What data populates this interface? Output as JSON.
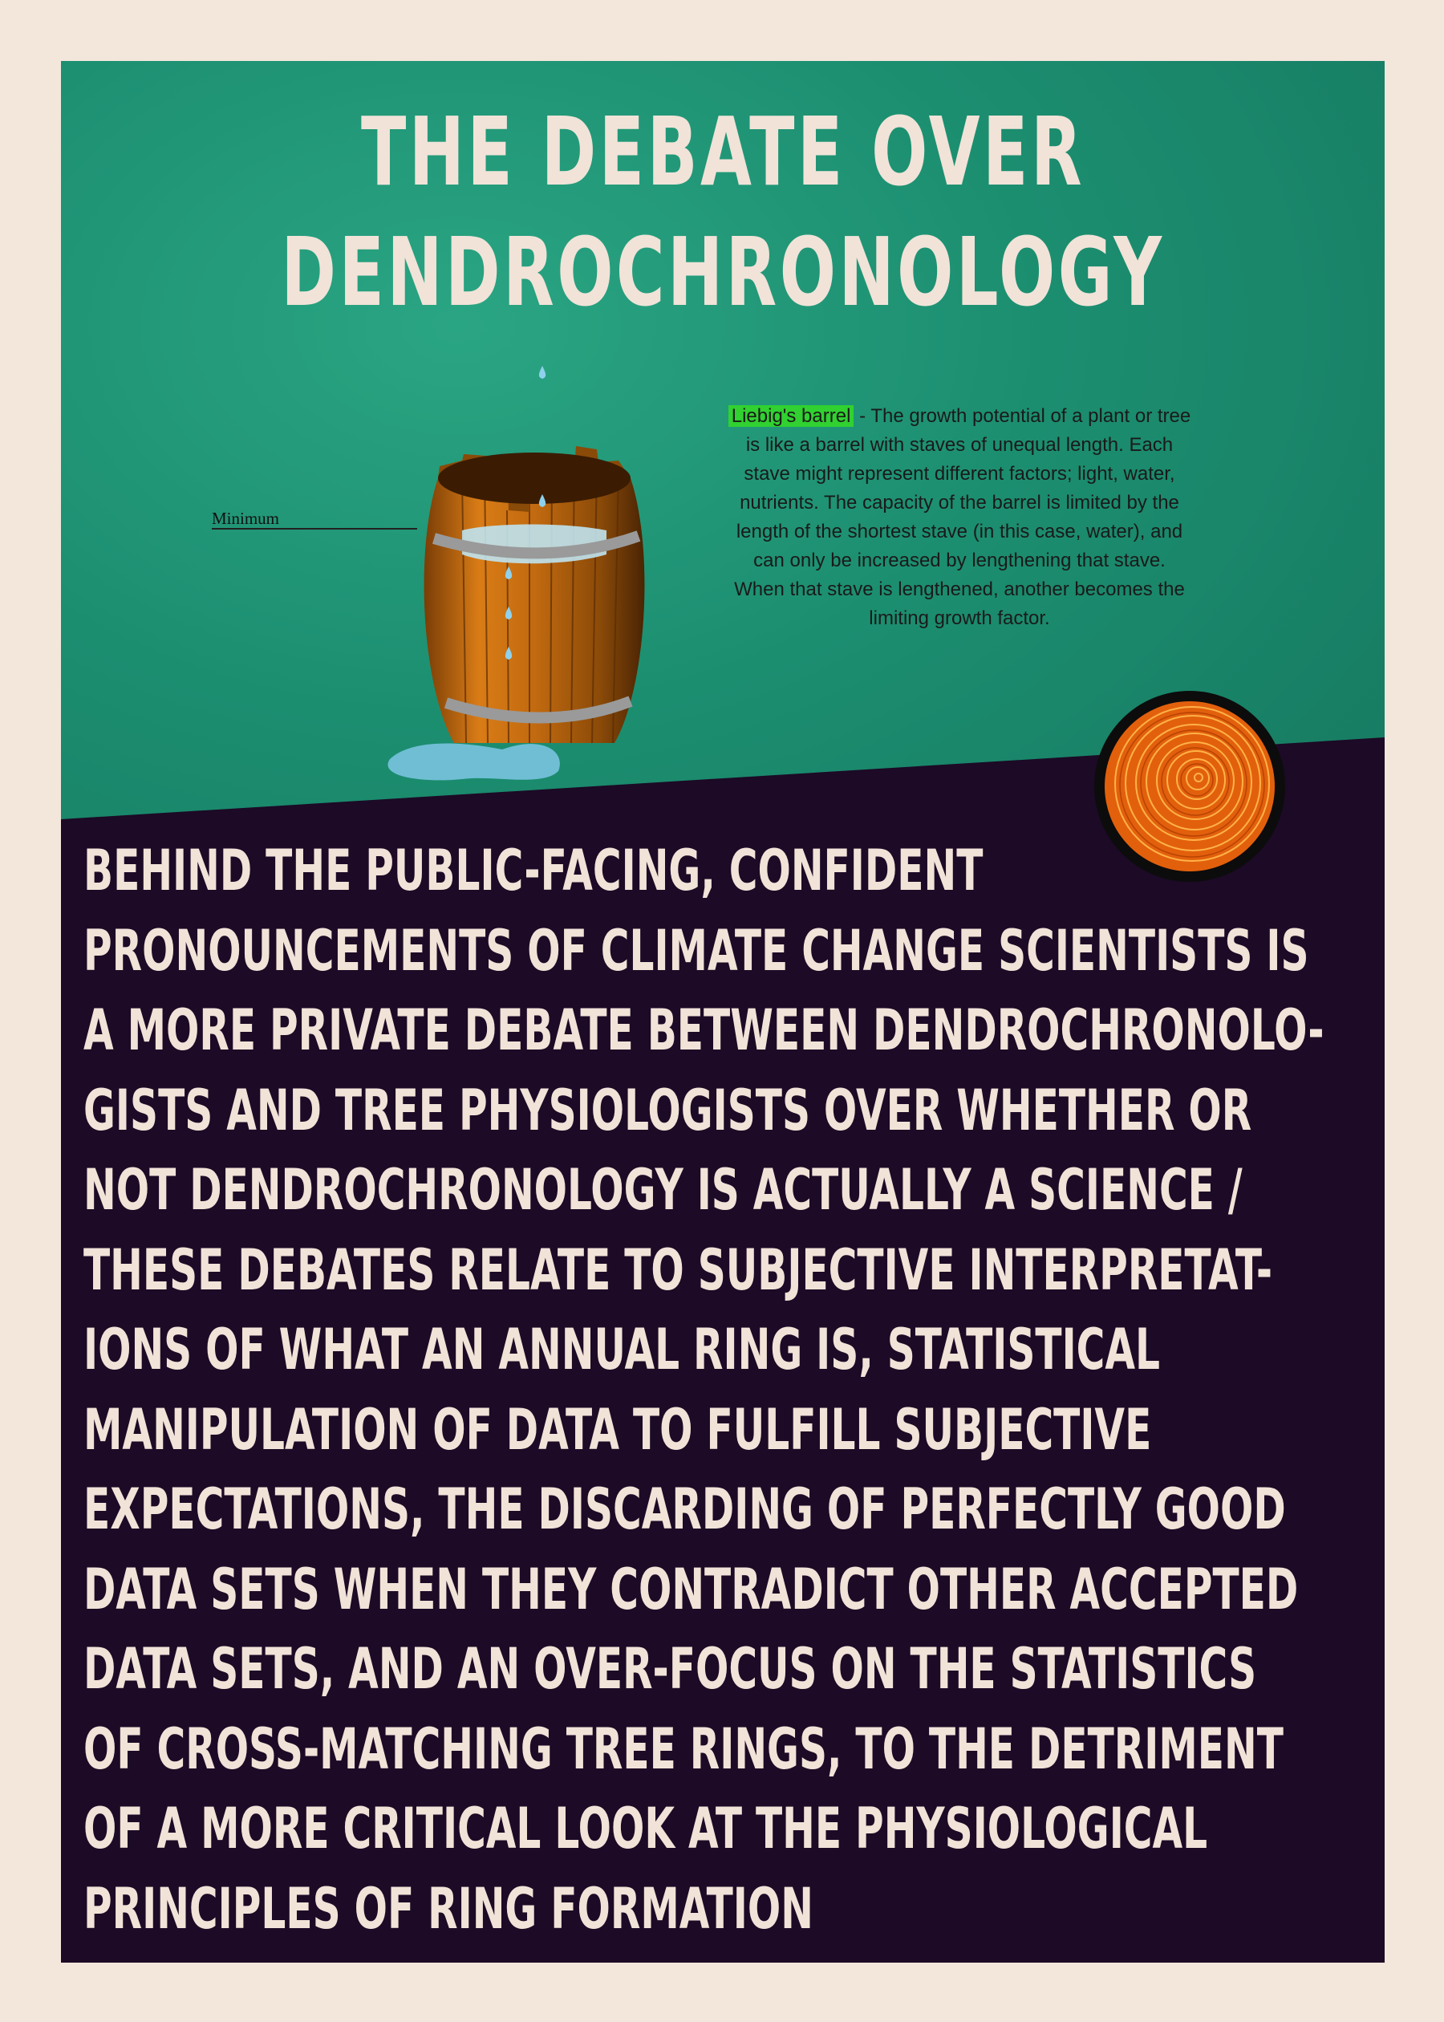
{
  "title": {
    "line1": "THE DEBATE OVER",
    "line2": "DENDROCHRONOLOGY"
  },
  "figure": {
    "label": "Minimum",
    "caption_highlight": "Liebig's barrel",
    "caption_lines": [
      " - The growth potential of a plant or tree",
      "is like a barrel with staves of unequal length. Each",
      "stave might represent different factors; light, water,",
      "nutrients. The capacity of the barrel is limited by the",
      "length of the shortest stave (in this case, water), and",
      "can only be increased by lengthening that stave.",
      "When that stave is lengthened, another becomes the",
      "limiting growth factor."
    ],
    "highlight_color": "#30d130"
  },
  "body": {
    "lines": [
      "BEHIND THE PUBLIC-FACING, CONFIDENT",
      "PRONOUNCEMENTS OF CLIMATE CHANGE SCIENTISTS IS",
      "A MORE PRIVATE DEBATE BETWEEN DENDROCHRONOLO-",
      "GISTS AND TREE PHYSIOLOGISTS OVER WHETHER OR",
      "NOT DENDROCHRONOLOGY IS ACTUALLY A SCIENCE /",
      "THESE DEBATES RELATE TO SUBJECTIVE INTERPRETAT-",
      "IONS OF WHAT AN ANNUAL RING IS, STATISTICAL",
      "MANIPULATION OF DATA TO FULFILL SUBJECTIVE",
      "EXPECTATIONS, THE DISCARDING OF PERFECTLY GOOD",
      "DATA SETS WHEN THEY CONTRADICT OTHER ACCEPTED",
      "DATA SETS, AND AN OVER-FOCUS ON THE STATISTICS",
      "OF CROSS-MATCHING TREE RINGS, TO THE DETRIMENT",
      "OF A MORE CRITICAL LOOK AT THE PHYSIOLOGICAL",
      "PRINCIPLES OF RING FORMATION"
    ]
  },
  "colors": {
    "page_background": "#f3e6db",
    "top_panel": "#1c8e70",
    "bottom_panel": "#1c0a26",
    "text_light": "#f1e3d8"
  }
}
